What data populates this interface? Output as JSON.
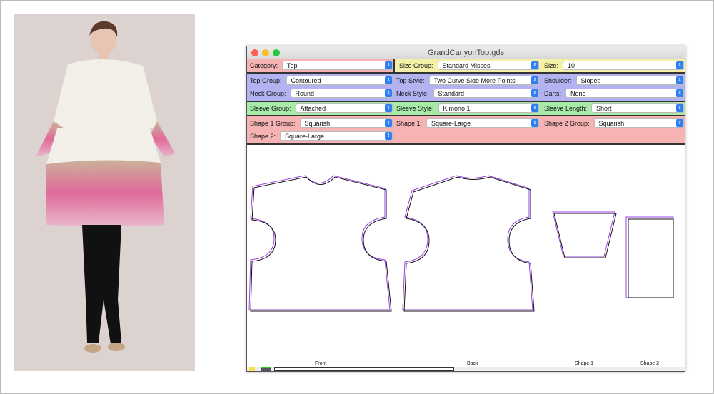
{
  "window": {
    "title": "GrandCanyonTop.gds"
  },
  "rows": {
    "category": {
      "label": "Category:",
      "value": "Top"
    },
    "size_group": {
      "label": "Size Group:",
      "value": "Standard Misses"
    },
    "size": {
      "label": "Size:",
      "value": "10"
    },
    "top_group": {
      "label": "Top Group:",
      "value": "Contoured"
    },
    "top_style": {
      "label": "Top Style:",
      "value": "Two Curve Side More Points"
    },
    "shoulder": {
      "label": "Shoulder:",
      "value": "Sloped"
    },
    "neck_group": {
      "label": "Neck Group:",
      "value": "Round"
    },
    "neck_style": {
      "label": "Neck Style:",
      "value": "Standard"
    },
    "darts": {
      "label": "Darts:",
      "value": "None"
    },
    "sleeve_group": {
      "label": "Sleeve Group:",
      "value": "Attached"
    },
    "sleeve_style": {
      "label": "Sleeve Style:",
      "value": "Kimono 1"
    },
    "sleeve_length": {
      "label": "Sleeve Length:",
      "value": "Short"
    },
    "shape1_group": {
      "label": "Shape 1 Group:",
      "value": "Squarish"
    },
    "shape1": {
      "label": "Shape 1:",
      "value": "Square-Large"
    },
    "shape2_group": {
      "label": "Shape 2 Group:",
      "value": "Squarish"
    },
    "shape2": {
      "label": "Shape 2:",
      "value": "Square-Large"
    }
  },
  "pieces": {
    "front": "Front",
    "back": "Back",
    "shape1": "Shape 1",
    "shape2": "Shape 2"
  },
  "colors": {
    "pink": "#f5b3b3",
    "yellow": "#f4f0a8",
    "blue": "#b3b3f2",
    "green": "#a8eaa8",
    "accent": "#2f7ff3",
    "outline_purple": "#9a3ee8"
  }
}
